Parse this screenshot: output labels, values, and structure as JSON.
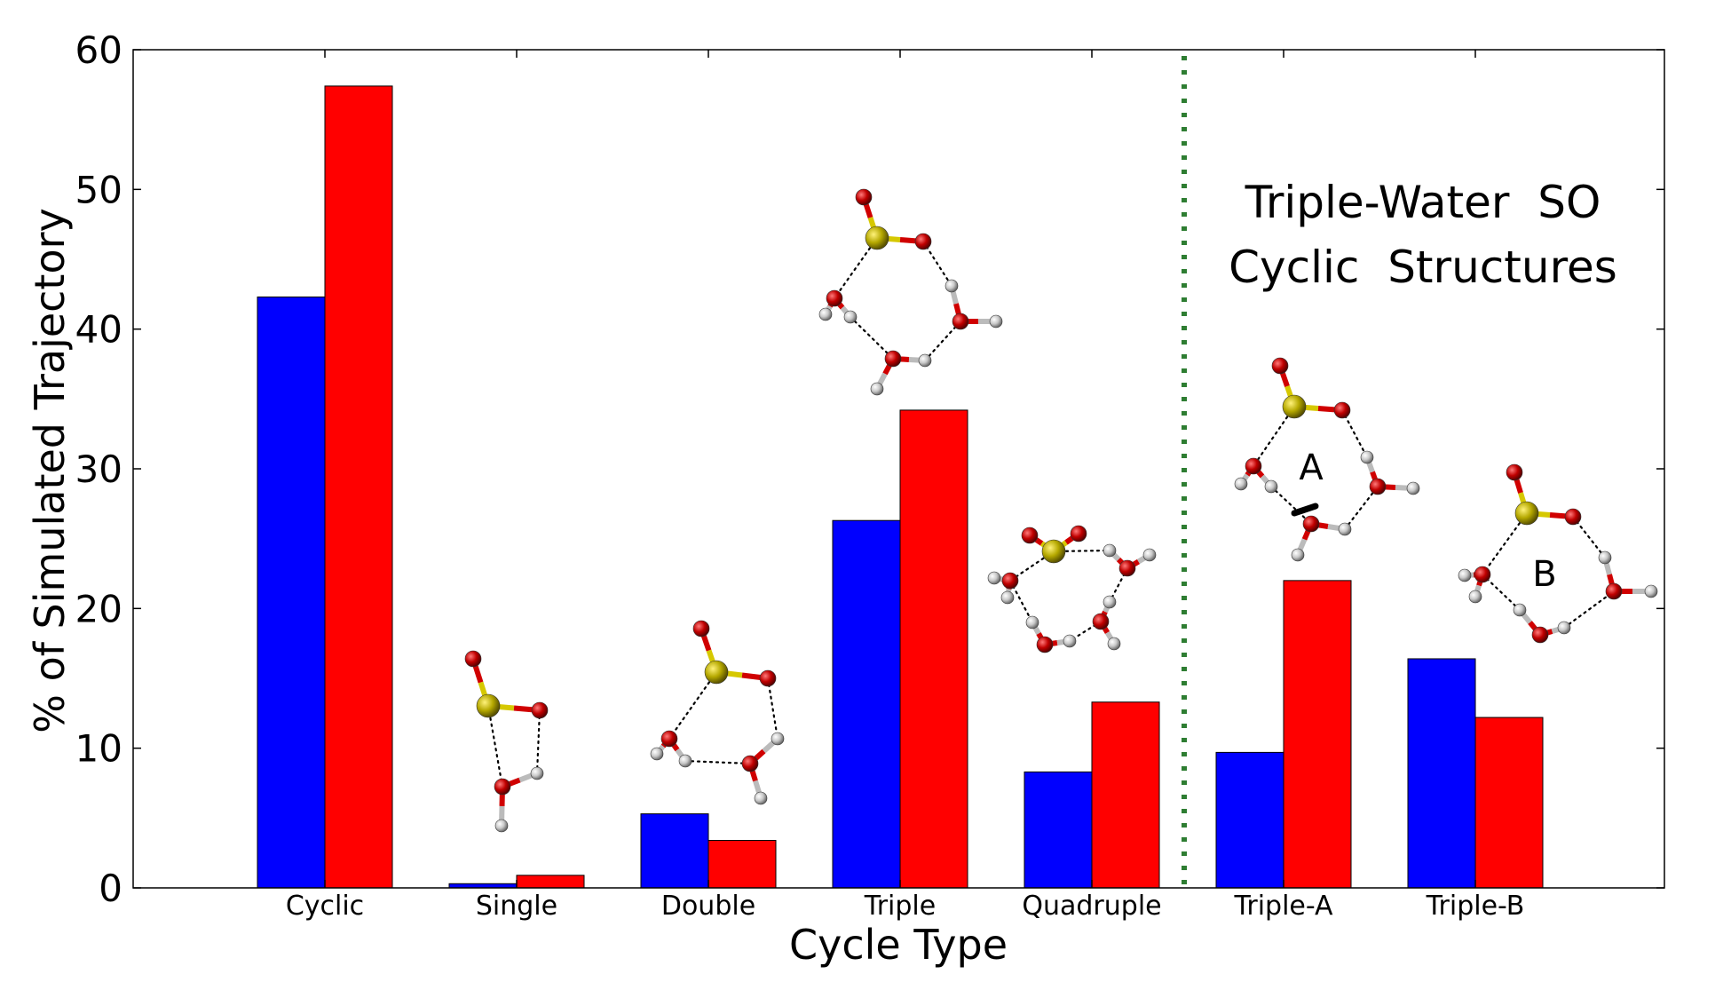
{
  "chart_data": {
    "type": "bar",
    "xlabel": "Cycle Type",
    "ylabel": "% of Simulated Trajectory",
    "ylim": [
      0,
      60
    ],
    "yticks": [
      0,
      10,
      20,
      30,
      40,
      50,
      60
    ],
    "categories": [
      "Cyclic",
      "Single",
      "Double",
      "Triple",
      "Quadruple",
      "Triple-A",
      "Triple-B"
    ],
    "series": [
      {
        "color": "#0000ff",
        "values": [
          42.3,
          0.3,
          5.3,
          26.3,
          8.3,
          9.7,
          16.4
        ]
      },
      {
        "color": "#ff0000",
        "values": [
          57.4,
          0.9,
          3.4,
          34.2,
          13.3,
          22.0,
          12.2
        ]
      }
    ],
    "annotation": {
      "line1": "Triple-Water  SO",
      "line2": "Cyclic  Structures"
    },
    "structure_labels": {
      "a": "A",
      "b": "B"
    },
    "divider_color": "#2e7d32",
    "atom_colors": {
      "sulfur": "#b5a800",
      "oxygen": "#c00000",
      "hydrogen": "#c8c8c8"
    }
  }
}
